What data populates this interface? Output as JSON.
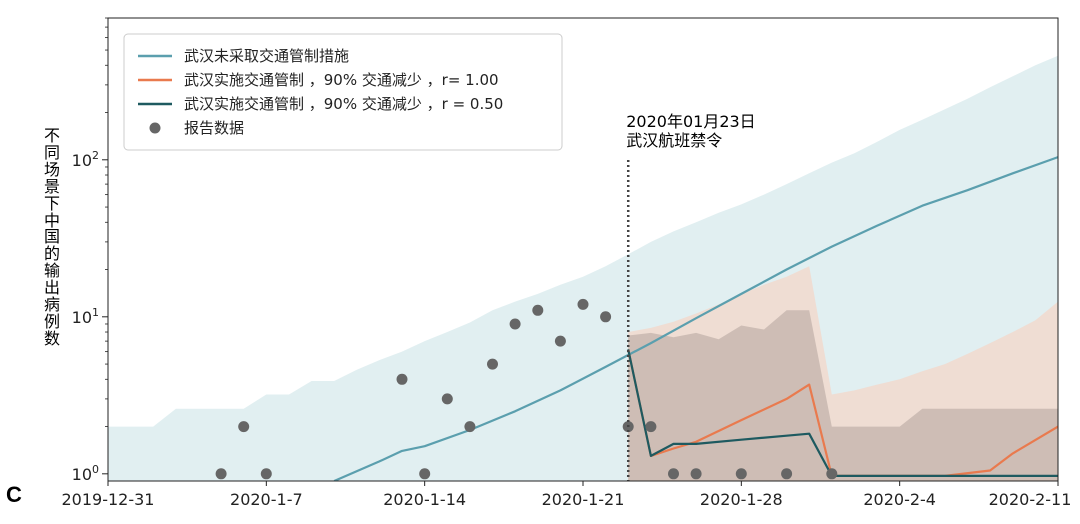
{
  "panel_letter": "C",
  "chart_data": {
    "type": "line",
    "ylabel": "不同场景下中国的输出病例数",
    "yscale": "log",
    "ylim": [
      0.9,
      800
    ],
    "xlim": [
      "2019-12-31",
      "2020-02-11"
    ],
    "x_ticks": [
      "2019-12-31",
      "2020-1-7",
      "2020-1-14",
      "2020-1-21",
      "2020-1-28",
      "2020-2-4",
      "2020-2-11"
    ],
    "y_ticks": [
      {
        "value": 1,
        "base": "10",
        "exp": "0"
      },
      {
        "value": 10,
        "base": "10",
        "exp": "1"
      },
      {
        "value": 100,
        "base": "10",
        "exp": "2"
      }
    ],
    "annotation": {
      "date": "2020-01-23",
      "lines": [
        "2020年01月23日",
        "武汉航班禁令"
      ]
    },
    "series": [
      {
        "name": "武汉未采取交通管制措施",
        "color": "#5b9fae",
        "band_color": "#c9e1e6",
        "x": [
          "2020-01-10",
          "2020-01-12",
          "2020-01-13",
          "2020-01-14",
          "2020-01-16",
          "2020-01-18",
          "2020-01-20",
          "2020-01-22",
          "2020-01-24",
          "2020-01-26",
          "2020-01-28",
          "2020-01-30",
          "2020-02-01",
          "2020-02-03",
          "2020-02-05",
          "2020-02-07",
          "2020-02-09",
          "2020-02-11"
        ],
        "values": [
          0.9,
          1.2,
          1.4,
          1.5,
          1.9,
          2.5,
          3.4,
          4.8,
          6.8,
          9.8,
          14,
          20,
          28,
          38,
          51,
          64,
          82,
          104
        ],
        "band_x": [
          "2019-12-31",
          "2020-01-01",
          "2020-01-02",
          "2020-01-03",
          "2020-01-04",
          "2020-01-06",
          "2020-01-07",
          "2020-01-08",
          "2020-01-09",
          "2020-01-10",
          "2020-01-11",
          "2020-01-12",
          "2020-01-13",
          "2020-01-14",
          "2020-01-15",
          "2020-01-16",
          "2020-01-17",
          "2020-01-18",
          "2020-01-19",
          "2020-01-20",
          "2020-01-21",
          "2020-01-22",
          "2020-01-23",
          "2020-01-24",
          "2020-01-25",
          "2020-01-26",
          "2020-01-27",
          "2020-01-28",
          "2020-01-29",
          "2020-01-30",
          "2020-01-31",
          "2020-02-01",
          "2020-02-02",
          "2020-02-03",
          "2020-02-04",
          "2020-02-05",
          "2020-02-06",
          "2020-02-07",
          "2020-02-08",
          "2020-02-09",
          "2020-02-10",
          "2020-02-11"
        ],
        "band_upper": [
          2.0,
          2.0,
          2.0,
          2.6,
          2.6,
          2.6,
          3.2,
          3.2,
          3.9,
          3.9,
          4.6,
          5.3,
          6.0,
          7.0,
          8.0,
          9.2,
          11,
          12.5,
          14,
          16,
          18,
          21,
          25,
          30,
          35,
          40,
          46,
          52,
          60,
          70,
          82,
          96,
          110,
          130,
          155,
          180,
          210,
          245,
          290,
          340,
          400,
          460
        ],
        "band_lower": [
          0.9,
          0.9,
          0.9,
          0.9,
          0.9,
          0.9,
          0.9,
          0.9,
          0.9,
          0.9,
          0.9,
          0.9,
          0.9,
          0.9,
          0.9,
          0.9,
          0.9,
          0.9,
          0.9,
          0.9,
          0.9,
          0.9,
          0.9,
          0.9,
          0.9,
          0.9,
          0.9,
          0.9,
          0.9,
          0.9,
          0.9,
          0.9,
          0.9,
          0.9,
          0.9,
          0.9,
          0.9,
          0.9,
          0.9,
          0.9,
          0.9,
          0.9
        ]
      },
      {
        "name": "武汉实施交通管制 ，90% 交通减少 ，r= 1.00",
        "color": "#e97a4e",
        "band_color": "#f9d0c0",
        "x": [
          "2020-01-23",
          "2020-01-24",
          "2020-01-25",
          "2020-01-26",
          "2020-01-28",
          "2020-01-30",
          "2020-01-31",
          "2020-02-01",
          "2020-02-03",
          "2020-02-05",
          "2020-02-06",
          "2020-02-08",
          "2020-02-09",
          "2020-02-11"
        ],
        "values": [
          6.2,
          1.3,
          1.45,
          1.6,
          2.2,
          3.0,
          3.7,
          0.97,
          0.97,
          0.97,
          0.97,
          1.05,
          1.35,
          2.0
        ],
        "band_x": [
          "2020-01-23",
          "2020-01-24",
          "2020-01-25",
          "2020-01-26",
          "2020-01-27",
          "2020-01-28",
          "2020-01-29",
          "2020-01-30",
          "2020-01-31",
          "2020-02-01",
          "2020-02-02",
          "2020-02-03",
          "2020-02-04",
          "2020-02-05",
          "2020-02-06",
          "2020-02-07",
          "2020-02-08",
          "2020-02-09",
          "2020-02-10",
          "2020-02-11"
        ],
        "band_upper": [
          8.0,
          8.5,
          9.3,
          10.5,
          12,
          14,
          16,
          18,
          21,
          3.2,
          3.4,
          3.7,
          4.0,
          4.5,
          5.0,
          5.8,
          6.8,
          8.0,
          9.5,
          12.5
        ],
        "band_lower": [
          0.9,
          0.9,
          0.9,
          0.9,
          0.9,
          0.9,
          0.9,
          0.9,
          0.9,
          0.9,
          0.9,
          0.9,
          0.9,
          0.9,
          0.9,
          0.9,
          0.9,
          0.9,
          0.9,
          0.9
        ]
      },
      {
        "name": "武汉实施交通管制 ，90% 交通减少 ，r = 0.50",
        "color": "#1e5a60",
        "band_color": "#b8a9a2",
        "x": [
          "2020-01-23",
          "2020-01-24",
          "2020-01-25",
          "2020-01-26",
          "2020-01-28",
          "2020-01-30",
          "2020-01-31",
          "2020-02-01",
          "2020-02-03",
          "2020-02-05",
          "2020-02-07",
          "2020-02-09",
          "2020-02-11"
        ],
        "values": [
          6.2,
          1.3,
          1.55,
          1.55,
          1.65,
          1.75,
          1.8,
          0.97,
          0.97,
          0.97,
          0.97,
          0.97,
          0.97
        ],
        "band_x": [
          "2020-01-23",
          "2020-01-24",
          "2020-01-25",
          "2020-01-26",
          "2020-01-27",
          "2020-01-28",
          "2020-01-29",
          "2020-01-30",
          "2020-01-31",
          "2020-02-01",
          "2020-02-02",
          "2020-02-03",
          "2020-02-04",
          "2020-02-05",
          "2020-02-06",
          "2020-02-07",
          "2020-02-08",
          "2020-02-09",
          "2020-02-10",
          "2020-02-11"
        ],
        "band_upper": [
          7.6,
          7.9,
          7.4,
          7.9,
          7.2,
          8.8,
          8.3,
          11,
          11,
          2.0,
          2.0,
          2.0,
          2.0,
          2.6,
          2.6,
          2.6,
          2.6,
          2.6,
          2.6,
          2.6
        ],
        "band_lower": [
          0.9,
          0.9,
          0.9,
          0.9,
          0.9,
          0.9,
          0.9,
          0.9,
          0.9,
          0.9,
          0.9,
          0.9,
          0.9,
          0.9,
          0.9,
          0.9,
          0.9,
          0.9,
          0.9,
          0.9
        ]
      }
    ],
    "reported": {
      "name": "报告数据",
      "color": "#666666",
      "x": [
        "2020-01-05",
        "2020-01-06",
        "2020-01-07",
        "2020-01-13",
        "2020-01-14",
        "2020-01-15",
        "2020-01-16",
        "2020-01-17",
        "2020-01-18",
        "2020-01-19",
        "2020-01-20",
        "2020-01-21",
        "2020-01-22",
        "2020-01-23",
        "2020-01-24",
        "2020-01-25",
        "2020-01-26",
        "2020-01-28",
        "2020-01-30",
        "2020-02-01"
      ],
      "values": [
        1,
        2,
        1,
        4,
        1,
        3,
        2,
        5,
        9,
        11,
        7,
        12,
        10,
        2,
        2,
        1,
        1,
        1,
        1,
        1
      ]
    }
  }
}
